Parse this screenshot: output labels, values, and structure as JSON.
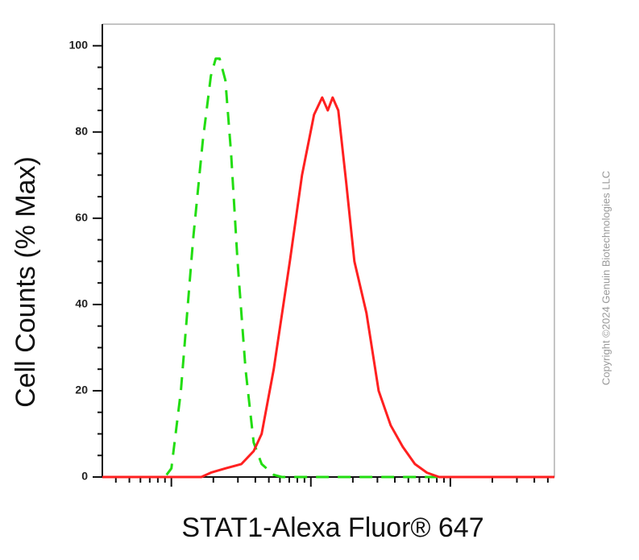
{
  "chart_data": {
    "type": "line",
    "xlabel": "STAT1-Alexa Fluor® 647",
    "ylabel": "Cell Counts (% Max)",
    "watermark": "Copyright ©2024 Genuin Biotechnologies LLC",
    "xscale": "log",
    "xlim": [
      32,
      55700
    ],
    "xticks": [
      100,
      1000,
      10000
    ],
    "xminorticks": [
      40,
      50,
      60,
      70,
      80,
      90,
      200,
      300,
      400,
      500,
      600,
      700,
      800,
      900,
      2000,
      3000,
      4000,
      5000,
      6000,
      7000,
      8000,
      9000,
      20000,
      30000,
      40000,
      50000
    ],
    "xticklabels": false,
    "ylim": [
      0,
      105
    ],
    "yticks": [
      0,
      20,
      40,
      60,
      80,
      100
    ],
    "yminorticks": [
      5,
      10,
      15,
      25,
      30,
      35,
      45,
      50,
      55,
      65,
      70,
      75,
      85,
      90,
      95
    ],
    "series": [
      {
        "color": "#22dd11",
        "dashed": true,
        "x": [
          32,
          74,
          90,
          100,
          117,
          143,
          168,
          192,
          208,
          222,
          244,
          268,
          298,
          340,
          389,
          444,
          542,
          619,
          1205,
          55700
        ],
        "values": [
          0,
          0,
          0,
          2,
          20,
          55,
          78,
          93,
          97,
          97,
          92,
          75,
          50,
          25,
          8,
          3,
          0.5,
          0,
          0,
          0
        ]
      },
      {
        "color": "#ff2020",
        "dashed": false,
        "x": [
          32,
          164,
          192,
          244,
          318,
          389,
          444,
          542,
          707,
          864,
          1054,
          1205,
          1322,
          1432,
          1573,
          1795,
          2051,
          2506,
          3060,
          3735,
          4560,
          5570,
          6795,
          8300,
          55700
        ],
        "values": [
          0,
          0,
          1,
          2,
          3,
          6,
          10,
          25,
          50,
          70,
          84,
          88,
          85,
          88,
          85,
          68,
          50,
          38,
          20,
          12,
          7,
          3,
          1,
          0,
          0
        ]
      }
    ]
  }
}
